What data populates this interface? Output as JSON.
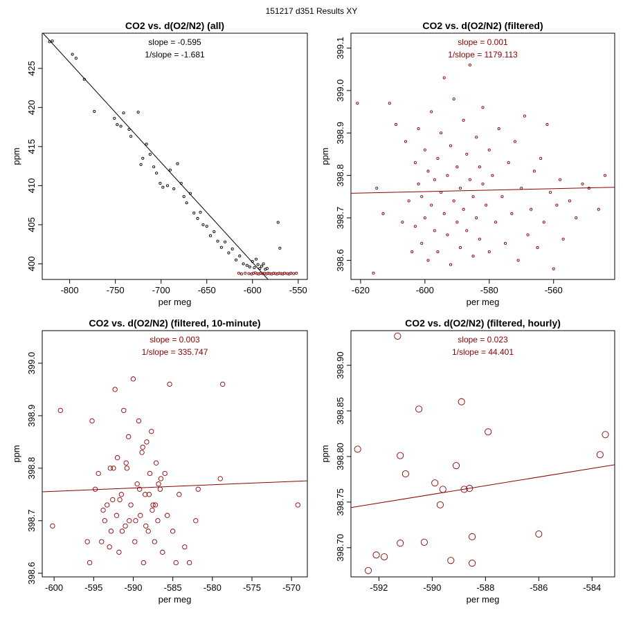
{
  "page_title": "151217   d351   Results XY",
  "colors": {
    "black": "#000000",
    "red": "#8b0000",
    "axis": "#000000"
  },
  "chart_data": [
    {
      "type": "scatter",
      "title": "CO2 vs. d(O2/N2) (all)",
      "xlabel": "per meg",
      "ylabel": "ppm",
      "xlim": [
        -830,
        -540
      ],
      "ylim": [
        398.0,
        429.5
      ],
      "x_ticks": [
        -800,
        -750,
        -700,
        -650,
        -600,
        -550
      ],
      "y_ticks": [
        400,
        405,
        410,
        415,
        420,
        425
      ],
      "grid": false,
      "annotations": [
        "slope = -0.595",
        "1/slope = -1.681"
      ],
      "fit_line": {
        "x": [
          -830,
          -583
        ],
        "y": [
          429.6,
          398.0
        ]
      },
      "series": [
        {
          "color": "#000000",
          "x": [
            -822,
            -819,
            -797,
            -793,
            -784,
            -773,
            -751,
            -748,
            -744,
            -741,
            -735,
            -733,
            -725,
            -722,
            -720,
            -716,
            -712,
            -708,
            -705,
            -701,
            -698,
            -693,
            -690,
            -686,
            -682,
            -678,
            -675,
            -672,
            -668,
            -664,
            -660,
            -657,
            -654,
            -650,
            -646,
            -642,
            -638,
            -634,
            -630,
            -626,
            -622,
            -618,
            -614,
            -610,
            -606,
            -603,
            -600,
            -598,
            -596,
            -594,
            -592,
            -590,
            -588,
            -586,
            -584,
            -572,
            -570
          ],
          "y": [
            428.4,
            428.5,
            426.8,
            426.3,
            423.6,
            419.5,
            418.6,
            417.8,
            417.6,
            419.3,
            417.2,
            416.3,
            419.4,
            412.7,
            413.5,
            415.3,
            414.0,
            412.4,
            411.6,
            410.3,
            409.8,
            410.0,
            412.0,
            409.6,
            412.8,
            410.3,
            408.6,
            407.8,
            409.0,
            406.5,
            405.8,
            406.6,
            405.0,
            404.8,
            403.6,
            404.1,
            402.9,
            402.1,
            402.8,
            401.4,
            401.9,
            400.5,
            401.0,
            400.0,
            399.8,
            399.6,
            400.3,
            399.5,
            400.6,
            399.9,
            399.4,
            399.7,
            400.0,
            399.3,
            399.4,
            405.3,
            402.0
          ]
        },
        {
          "color": "#8b0000",
          "x": [
            -615,
            -612,
            -608,
            -604,
            -601,
            -599,
            -597,
            -595,
            -593,
            -591,
            -589,
            -587,
            -585,
            -583,
            -581,
            -579,
            -577,
            -575,
            -573,
            -571,
            -569,
            -567,
            -565,
            -562,
            -560,
            -558,
            -555,
            -552
          ],
          "y": [
            398.8,
            398.7,
            398.8,
            398.75,
            398.7,
            398.8,
            398.85,
            398.75,
            398.7,
            398.8,
            398.75,
            398.8,
            398.7,
            398.8,
            398.75,
            398.7,
            398.8,
            398.75,
            398.7,
            398.8,
            398.75,
            398.7,
            398.8,
            398.75,
            398.7,
            398.8,
            398.75,
            398.8
          ]
        }
      ]
    },
    {
      "type": "scatter",
      "title": "CO2 vs. d(O2/N2) (filtered)",
      "xlabel": "per meg",
      "ylabel": "ppm",
      "xlim": [
        -623,
        -541
      ],
      "ylim": [
        398.555,
        399.135
      ],
      "x_ticks": [
        -620,
        -600,
        -580,
        -560
      ],
      "y_ticks": [
        "398.6",
        "398.7",
        "398.8",
        "398.9",
        "399.0",
        "399.1"
      ],
      "grid": false,
      "annotations": [
        "slope = 0.001",
        "1/slope = 1179.113"
      ],
      "fit_line": {
        "x": [
          -623,
          -541
        ],
        "y": [
          398.758,
          398.772
        ]
      },
      "series": [
        {
          "color": "#8b0000",
          "x": [
            -621,
            -616,
            -615,
            -613,
            -611,
            -609,
            -607,
            -606,
            -605,
            -604,
            -603,
            -603,
            -602,
            -602,
            -601,
            -601,
            -600,
            -600,
            -599,
            -599,
            -598,
            -598,
            -597,
            -597,
            -596,
            -596,
            -595,
            -595,
            -594,
            -594,
            -593,
            -593,
            -592,
            -592,
            -591,
            -591,
            -590,
            -590,
            -589,
            -589,
            -588,
            -588,
            -587,
            -587,
            -586,
            -586,
            -585,
            -585,
            -584,
            -584,
            -583,
            -583,
            -582,
            -582,
            -581,
            -580,
            -580,
            -579,
            -578,
            -577,
            -576,
            -575,
            -574,
            -573,
            -572,
            -571,
            -570,
            -569,
            -568,
            -567,
            -566,
            -565,
            -564,
            -563,
            -562,
            -561,
            -560,
            -559,
            -558,
            -557,
            -555,
            -553,
            -551,
            -549,
            -546,
            -544
          ],
          "y": [
            398.97,
            398.57,
            398.77,
            398.71,
            398.97,
            398.92,
            398.69,
            398.88,
            398.74,
            398.62,
            398.83,
            398.68,
            398.78,
            398.91,
            398.64,
            398.75,
            398.86,
            398.7,
            398.81,
            398.6,
            398.73,
            398.95,
            398.67,
            398.79,
            398.84,
            398.62,
            398.76,
            398.9,
            398.71,
            399.03,
            398.66,
            398.8,
            398.87,
            398.59,
            398.74,
            398.98,
            398.69,
            398.82,
            398.77,
            398.63,
            398.93,
            398.72,
            398.85,
            398.67,
            398.79,
            399.06,
            398.61,
            398.75,
            398.89,
            398.7,
            398.82,
            398.65,
            398.96,
            398.78,
            398.73,
            398.86,
            398.62,
            398.8,
            398.69,
            398.91,
            398.75,
            398.64,
            398.83,
            398.71,
            398.88,
            398.6,
            398.77,
            398.94,
            398.66,
            398.72,
            398.81,
            398.63,
            398.84,
            398.69,
            398.92,
            398.76,
            398.58,
            398.73,
            398.79,
            398.65,
            398.74,
            398.7,
            398.78,
            398.77,
            398.72,
            398.8
          ]
        }
      ]
    },
    {
      "type": "scatter",
      "title": "CO2 vs. d(O2/N2) (filtered, 10-minute)",
      "xlabel": "per meg",
      "ylabel": "ppm",
      "xlim": [
        -601.5,
        -568
      ],
      "ylim": [
        398.593,
        399.062
      ],
      "x_ticks": [
        -600,
        -595,
        -590,
        -585,
        -580,
        -575,
        -570
      ],
      "y_ticks": [
        "398.6",
        "398.7",
        "398.8",
        "398.9",
        "399.0"
      ],
      "grid": false,
      "annotations": [
        "slope = 0.003",
        "1/slope = 335.747"
      ],
      "fit_line": {
        "x": [
          -601.5,
          -568
        ],
        "y": [
          398.755,
          398.776
        ]
      },
      "series": [
        {
          "color": "#8b0000",
          "x": [
            -600.2,
            -599.2,
            -595.8,
            -595.5,
            -595.2,
            -594.8,
            -594.4,
            -594.0,
            -593.6,
            -593.3,
            -593.0,
            -592.8,
            -592.5,
            -592.3,
            -592.1,
            -592.0,
            -591.8,
            -591.5,
            -591.2,
            -591.0,
            -590.8,
            -590.6,
            -590.3,
            -590.0,
            -589.8,
            -589.5,
            -589.3,
            -589.1,
            -588.9,
            -588.7,
            -588.5,
            -588.3,
            -588.1,
            -587.9,
            -587.7,
            -587.5,
            -587.3,
            -587.1,
            -586.9,
            -586.6,
            -586.3,
            -586.0,
            -585.7,
            -585.4,
            -585.0,
            -584.6,
            -584.2,
            -583.5,
            -582.9,
            -582.1,
            -581.8,
            -579.0,
            -578.7,
            -569.2,
            -592.6,
            -591.4,
            -590.9,
            -589.7,
            -588.8,
            -588.0,
            -587.6,
            -586.8,
            -593.8,
            -592.9,
            -591.7,
            -590.5,
            -589.2,
            -588.4,
            -587.2,
            -586.5
          ],
          "y": [
            398.69,
            398.91,
            398.66,
            398.62,
            398.89,
            398.76,
            398.79,
            398.66,
            398.7,
            398.73,
            398.65,
            398.68,
            398.8,
            398.95,
            398.71,
            398.82,
            398.64,
            398.75,
            398.91,
            398.69,
            398.8,
            398.86,
            398.73,
            398.97,
            398.66,
            398.77,
            398.89,
            398.71,
            398.83,
            398.62,
            398.75,
            398.85,
            398.68,
            398.79,
            398.87,
            398.73,
            398.66,
            398.81,
            398.7,
            398.76,
            398.64,
            398.79,
            398.71,
            398.96,
            398.68,
            398.62,
            398.75,
            398.65,
            398.62,
            398.7,
            398.76,
            398.78,
            398.96,
            398.73,
            398.74,
            398.68,
            398.81,
            398.7,
            398.84,
            398.75,
            398.72,
            398.77,
            398.72,
            398.8,
            398.74,
            398.7,
            398.76,
            398.69,
            398.73,
            398.78
          ]
        }
      ]
    },
    {
      "type": "scatter",
      "title": "CO2 vs. d(O2/N2) (filtered, hourly)",
      "xlabel": "per meg",
      "ylabel": "ppm",
      "xlim": [
        -593.05,
        -583.15
      ],
      "ylim": [
        398.668,
        398.938
      ],
      "x_ticks": [
        -592,
        -590,
        -588,
        -586,
        -584
      ],
      "y_ticks": [
        "398.70",
        "398.75",
        "398.80",
        "398.85",
        "398.90"
      ],
      "grid": false,
      "annotations": [
        "slope = 0.023",
        "1/slope = 44.401"
      ],
      "fit_line": {
        "x": [
          -593.05,
          -583.15
        ],
        "y": [
          398.744,
          398.791
        ]
      },
      "series": [
        {
          "color": "#8b0000",
          "x": [
            -592.8,
            -592.4,
            -592.1,
            -591.8,
            -591.3,
            -591.2,
            -591.0,
            -591.2,
            -590.5,
            -590.3,
            -589.9,
            -589.7,
            -589.6,
            -589.3,
            -589.1,
            -588.9,
            -588.8,
            -588.6,
            -588.5,
            -588.5,
            -587.9,
            -586.0,
            -583.7,
            -583.5
          ],
          "y": [
            398.808,
            398.675,
            398.692,
            398.69,
            398.932,
            398.801,
            398.781,
            398.705,
            398.852,
            398.706,
            398.771,
            398.747,
            398.764,
            398.686,
            398.79,
            398.86,
            398.764,
            398.765,
            398.712,
            398.683,
            398.827,
            398.715,
            398.802,
            398.824
          ]
        }
      ]
    }
  ]
}
